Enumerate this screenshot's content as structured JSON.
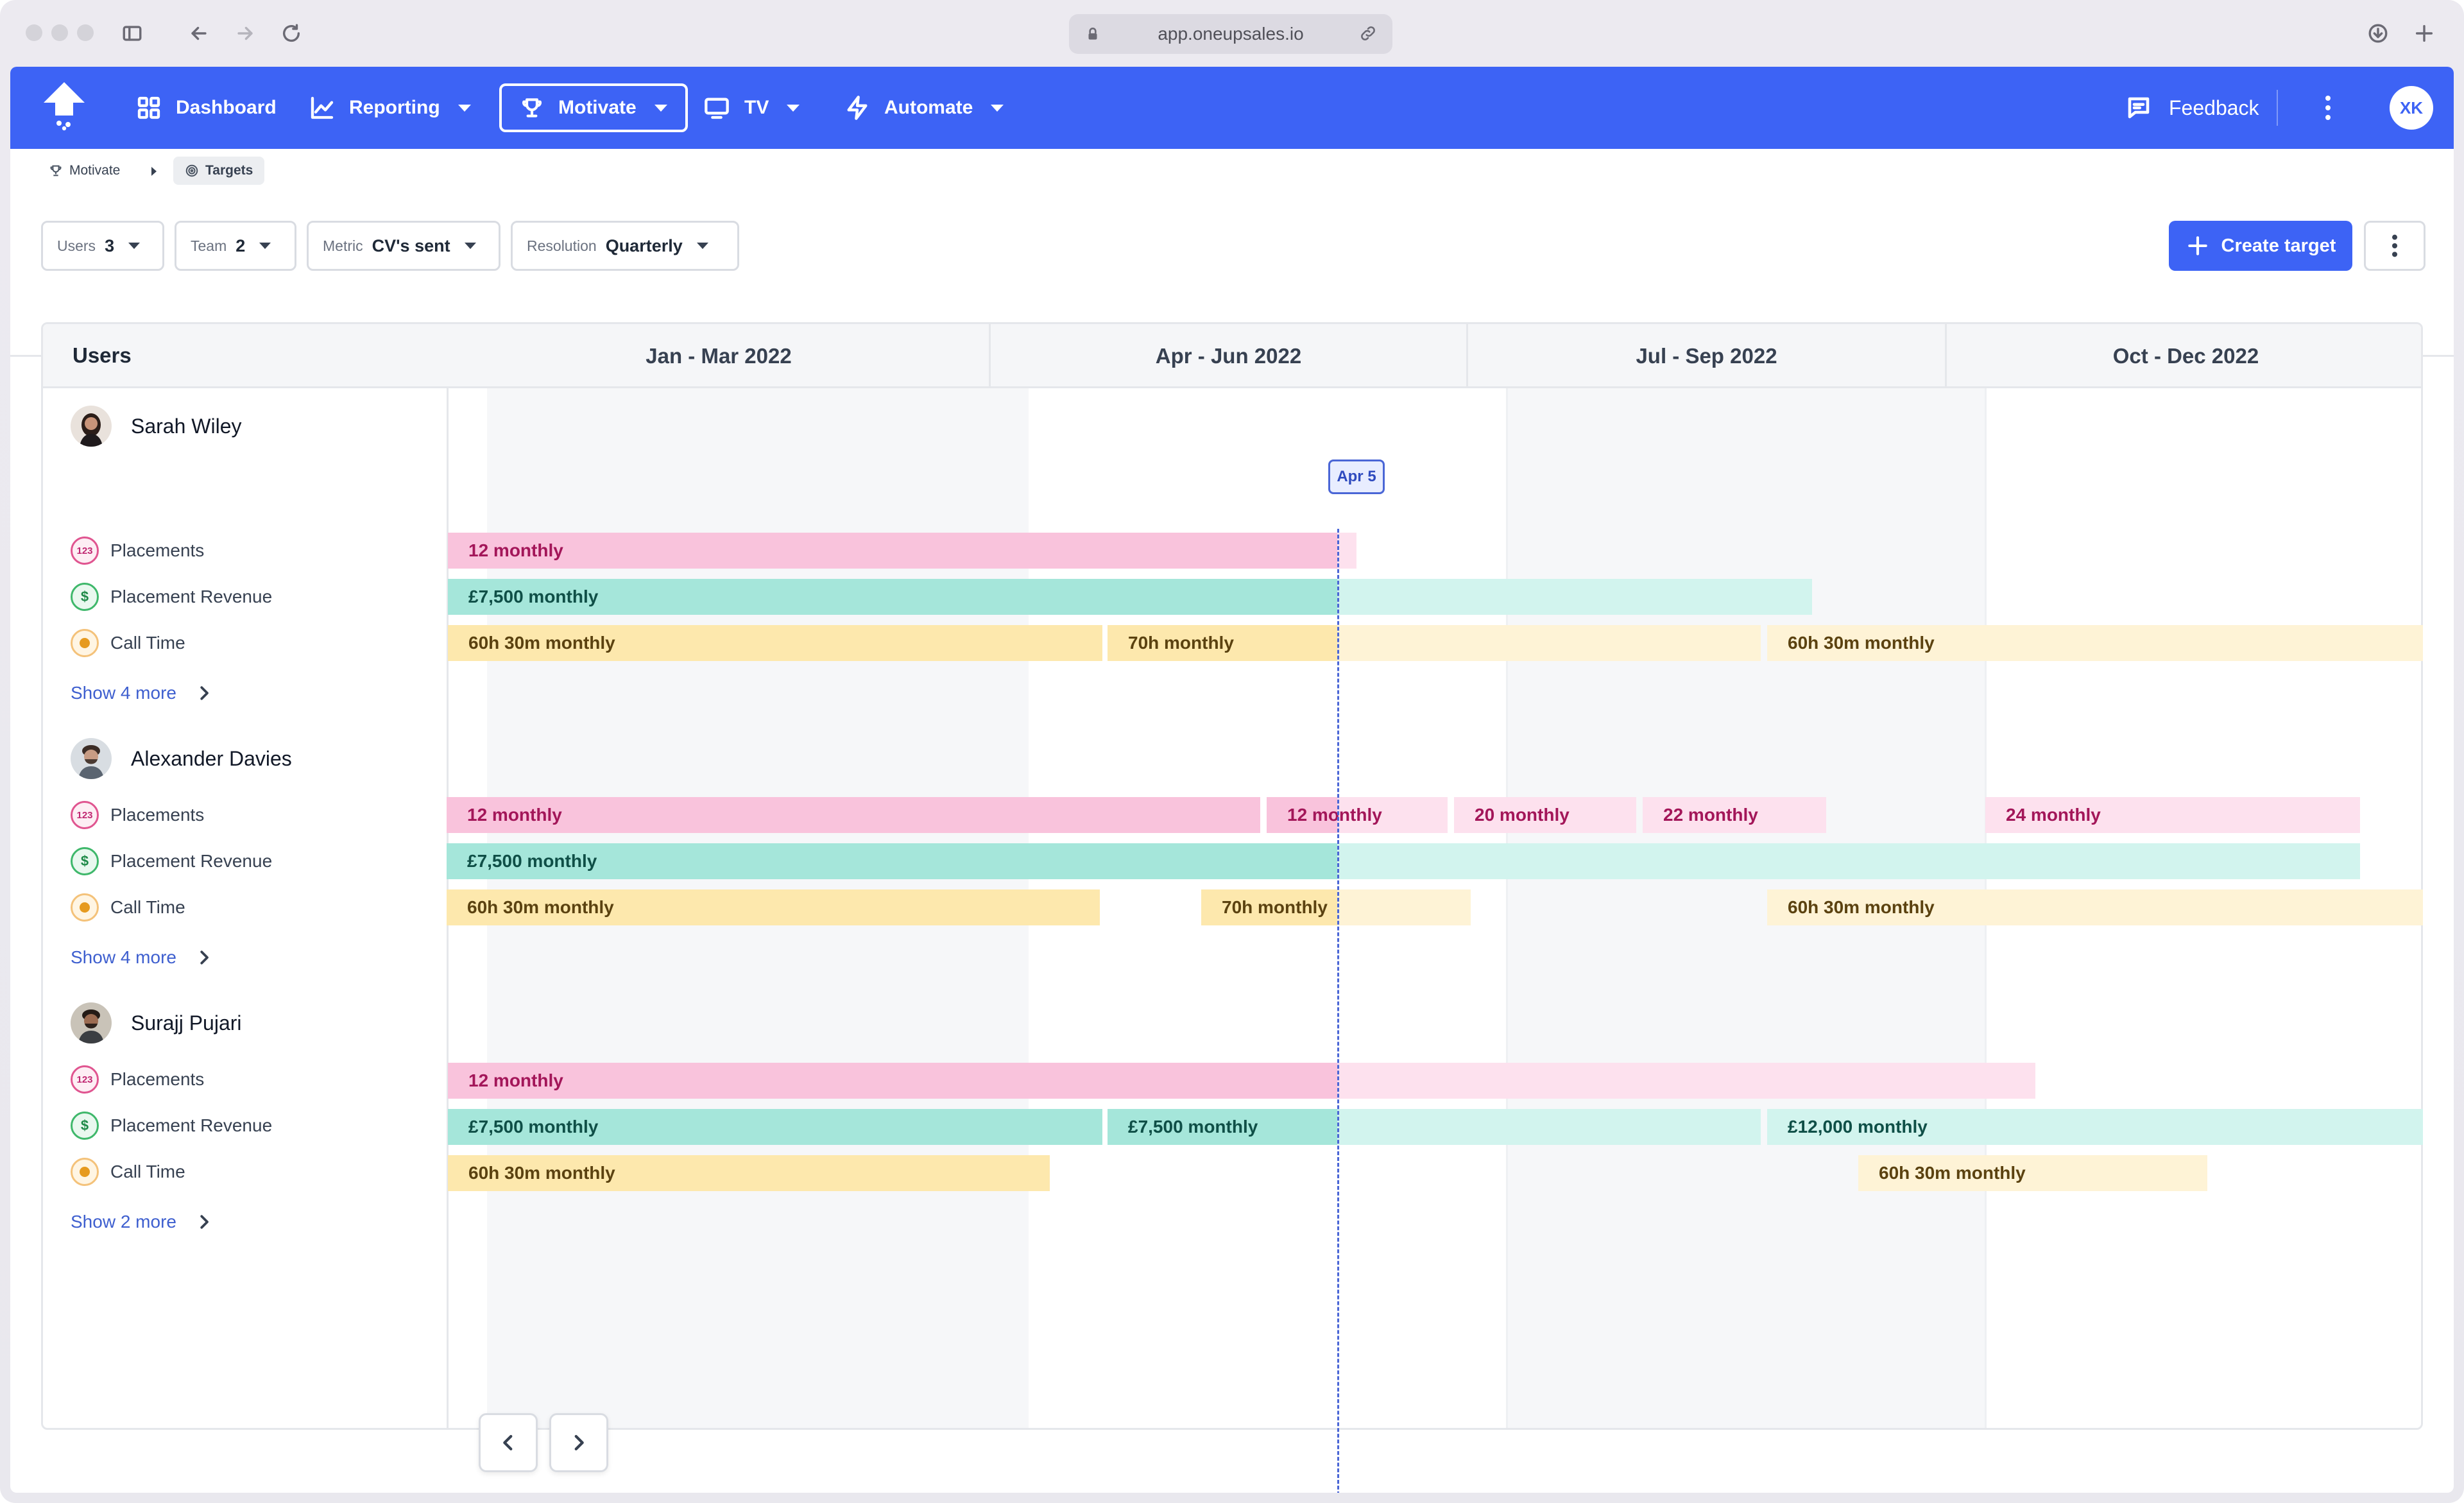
{
  "browser": {
    "url": "app.oneupsales.io"
  },
  "nav": {
    "items": [
      {
        "label": "Dashboard",
        "icon": "dashboard-grid-icon"
      },
      {
        "label": "Reporting",
        "icon": "line-chart-icon"
      },
      {
        "label": "Motivate",
        "icon": "trophy-icon"
      },
      {
        "label": "TV",
        "icon": "monitor-icon"
      },
      {
        "label": "Automate",
        "icon": "lightning-icon"
      }
    ],
    "feedback_label": "Feedback",
    "avatar_initials": "XK",
    "brand_color": "#3d63f5"
  },
  "breadcrumb": {
    "parent": "Motivate",
    "current": "Targets"
  },
  "filters": {
    "users": {
      "label": "Users",
      "value": "3"
    },
    "team": {
      "label": "Team",
      "value": "2"
    },
    "metric": {
      "label": "Metric",
      "value": "CV's sent"
    },
    "resolution": {
      "label": "Resolution",
      "value": "Quarterly"
    }
  },
  "create_target_label": "Create target",
  "board": {
    "users_header": "Users",
    "quarters": [
      "Jan - Mar 2022",
      "Apr - Jun 2022",
      "Jul - Sep 2022",
      "Oct - Dec 2022"
    ],
    "today_label": "Apr 5",
    "users": [
      {
        "name": "Sarah Wiley",
        "metrics": [
          "Placements",
          "Placement Revenue",
          "Call Time"
        ],
        "show_more": "Show 4 more",
        "bars": [
          [
            "12 monthly"
          ],
          [
            "£7,500 monthly"
          ],
          [
            "60h 30m monthly",
            "70h monthly",
            "60h 30m monthly"
          ]
        ]
      },
      {
        "name": "Alexander Davies",
        "metrics": [
          "Placements",
          "Placement Revenue",
          "Call Time"
        ],
        "show_more": "Show 4 more",
        "bars": [
          [
            "12 monthly",
            "12 monthly",
            "20 monthly",
            "22 monthly",
            "24 monthly"
          ],
          [
            "£7,500 monthly"
          ],
          [
            "60h 30m monthly",
            "70h monthly",
            "60h 30m monthly"
          ]
        ]
      },
      {
        "name": "Surajj Pujari",
        "metrics": [
          "Placements",
          "Placement Revenue",
          "Call Time"
        ],
        "show_more": "Show 2 more",
        "bars": [
          [
            "12 monthly"
          ],
          [
            "£7,500 monthly",
            "£7,500 monthly",
            "£12,000 monthly"
          ],
          [
            "60h 30m monthly",
            "60h 30m monthly"
          ]
        ]
      }
    ]
  }
}
